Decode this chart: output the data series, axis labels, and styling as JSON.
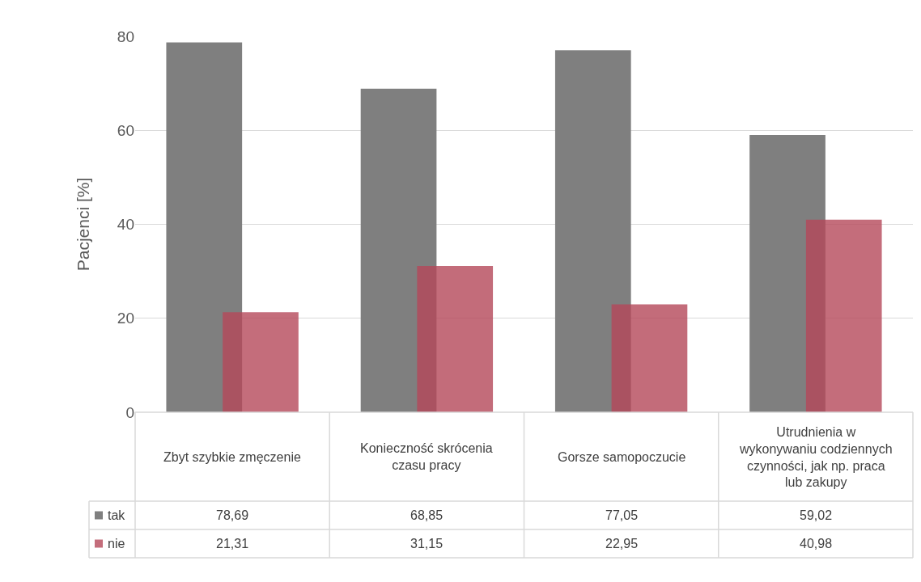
{
  "chart_data": {
    "type": "bar",
    "ylabel": "Pacjenci [%]",
    "categories": [
      "Zbyt szybkie zmęczenie",
      "Konieczność skrócenia czasu pracy",
      "Gorsze samopoczucie",
      "Utrudnienia w wykonywaniu codziennych czynności, jak np. praca lub zakupy"
    ],
    "series": [
      {
        "name": "tak",
        "color": "#7f7f7f",
        "values": [
          78.69,
          68.85,
          77.05,
          59.02
        ],
        "value_labels": [
          "78,69",
          "68,85",
          "77,05",
          "59,02"
        ]
      },
      {
        "name": "nie",
        "color": "#b5485a",
        "values": [
          21.31,
          31.15,
          22.95,
          40.98
        ],
        "value_labels": [
          "21,31",
          "31,15",
          "22,95",
          "40,98"
        ]
      }
    ],
    "legend": "bottom left",
    "ylim": [
      0,
      80
    ],
    "yticks": [
      0,
      20,
      40,
      60,
      80
    ],
    "grid": "y"
  }
}
